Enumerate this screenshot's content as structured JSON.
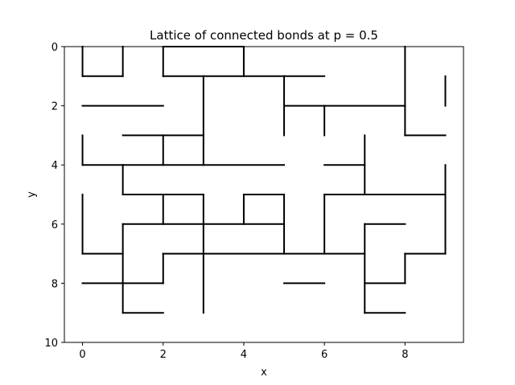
{
  "chart_data": {
    "type": "line",
    "title": "Lattice of connected bonds at p = 0.5",
    "xlabel": "x",
    "ylabel": "y",
    "xlim": [
      -0.45,
      9.45
    ],
    "ylim": [
      10,
      0
    ],
    "y_inverted": true,
    "grid": false,
    "legend": "none",
    "xticks": [
      "0",
      "2",
      "4",
      "6",
      "8"
    ],
    "yticks": [
      "0",
      "2",
      "4",
      "6",
      "8",
      "10"
    ],
    "series_color": "#000000",
    "segments": [
      [
        [
          0,
          0
        ],
        [
          0,
          1
        ]
      ],
      [
        [
          0,
          1
        ],
        [
          1,
          1
        ]
      ],
      [
        [
          1,
          1
        ],
        [
          1,
          0
        ]
      ],
      [
        [
          2,
          0
        ],
        [
          2,
          1
        ]
      ],
      [
        [
          2,
          1
        ],
        [
          5,
          1
        ]
      ],
      [
        [
          5,
          1
        ],
        [
          6,
          1
        ]
      ],
      [
        [
          2,
          0
        ],
        [
          4,
          0
        ]
      ],
      [
        [
          4,
          0
        ],
        [
          4,
          1
        ]
      ],
      [
        [
          3,
          1
        ],
        [
          3,
          4
        ]
      ],
      [
        [
          5,
          1
        ],
        [
          5,
          3
        ]
      ],
      [
        [
          5,
          2
        ],
        [
          8,
          2
        ]
      ],
      [
        [
          6,
          2
        ],
        [
          6,
          3
        ]
      ],
      [
        [
          8,
          0
        ],
        [
          8,
          3
        ]
      ],
      [
        [
          8,
          3
        ],
        [
          9,
          3
        ]
      ],
      [
        [
          9,
          1
        ],
        [
          9,
          2
        ]
      ],
      [
        [
          0,
          2
        ],
        [
          2,
          2
        ]
      ],
      [
        [
          1,
          3
        ],
        [
          3,
          3
        ]
      ],
      [
        [
          2,
          3
        ],
        [
          2,
          4
        ]
      ],
      [
        [
          0,
          3
        ],
        [
          0,
          4
        ]
      ],
      [
        [
          0,
          4
        ],
        [
          5,
          4
        ]
      ],
      [
        [
          1,
          4
        ],
        [
          1,
          5
        ]
      ],
      [
        [
          1,
          5
        ],
        [
          3,
          5
        ]
      ],
      [
        [
          2,
          5
        ],
        [
          2,
          6
        ]
      ],
      [
        [
          3,
          5
        ],
        [
          3,
          9
        ]
      ],
      [
        [
          4,
          5
        ],
        [
          5,
          5
        ]
      ],
      [
        [
          4,
          5
        ],
        [
          4,
          6
        ]
      ],
      [
        [
          5,
          5
        ],
        [
          5,
          7
        ]
      ],
      [
        [
          1,
          6
        ],
        [
          5,
          6
        ]
      ],
      [
        [
          1,
          6
        ],
        [
          1,
          9
        ]
      ],
      [
        [
          0,
          5
        ],
        [
          0,
          7
        ]
      ],
      [
        [
          0,
          7
        ],
        [
          1,
          7
        ]
      ],
      [
        [
          0,
          8
        ],
        [
          2,
          8
        ]
      ],
      [
        [
          2,
          8
        ],
        [
          2,
          7
        ]
      ],
      [
        [
          2,
          7
        ],
        [
          7,
          7
        ]
      ],
      [
        [
          1,
          9
        ],
        [
          2,
          9
        ]
      ],
      [
        [
          5,
          8
        ],
        [
          6,
          8
        ]
      ],
      [
        [
          6,
          4
        ],
        [
          7,
          4
        ]
      ],
      [
        [
          7,
          3
        ],
        [
          7,
          5
        ]
      ],
      [
        [
          6,
          5
        ],
        [
          9,
          5
        ]
      ],
      [
        [
          6,
          5
        ],
        [
          6,
          7
        ]
      ],
      [
        [
          9,
          4
        ],
        [
          9,
          7
        ]
      ],
      [
        [
          8,
          7
        ],
        [
          9,
          7
        ]
      ],
      [
        [
          8,
          7
        ],
        [
          8,
          8
        ]
      ],
      [
        [
          7,
          6
        ],
        [
          8,
          6
        ]
      ],
      [
        [
          7,
          6
        ],
        [
          7,
          9
        ]
      ],
      [
        [
          7,
          8
        ],
        [
          8,
          8
        ]
      ],
      [
        [
          7,
          9
        ],
        [
          8,
          9
        ]
      ]
    ]
  }
}
